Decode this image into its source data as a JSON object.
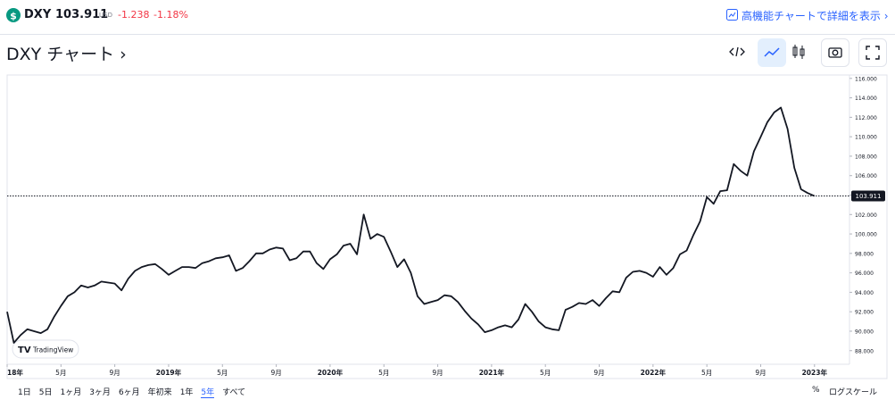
{
  "header": {
    "symbol": "DXY",
    "price": "103.911",
    "currency": "USD",
    "change": "-1.238",
    "change_pct": "-1.18%",
    "link": "高機能チャートで詳細を表示"
  },
  "title": "DXY チャート",
  "chart_data": {
    "type": "line",
    "series": [
      {
        "name": "DXY",
        "color": "#131722",
        "values": [
          92.0,
          88.8,
          89.6,
          90.2,
          90.0,
          89.8,
          90.2,
          91.5,
          92.6,
          93.6,
          94.0,
          94.7,
          94.5,
          94.7,
          95.1,
          95.0,
          94.9,
          94.2,
          95.4,
          96.2,
          96.6,
          96.8,
          96.9,
          96.4,
          95.8,
          96.2,
          96.6,
          96.6,
          96.5,
          97.0,
          97.2,
          97.5,
          97.6,
          97.8,
          96.2,
          96.5,
          97.2,
          98.0,
          98.0,
          98.4,
          98.6,
          98.5,
          97.3,
          97.5,
          98.2,
          98.2,
          97.0,
          96.4,
          97.4,
          97.9,
          98.8,
          99.0,
          97.9,
          102.0,
          99.5,
          100.0,
          99.7,
          98.2,
          96.6,
          97.4,
          96.0,
          93.6,
          92.8,
          93.0,
          93.2,
          93.7,
          93.6,
          93.0,
          92.1,
          91.3,
          90.7,
          89.9,
          90.1,
          90.4,
          90.6,
          90.4,
          91.2,
          92.8,
          92.0,
          91.0,
          90.4,
          90.2,
          90.1,
          92.2,
          92.5,
          92.9,
          92.8,
          93.2,
          92.6,
          93.4,
          94.1,
          94.0,
          95.5,
          96.1,
          96.2,
          96.0,
          95.6,
          96.6,
          95.8,
          96.5,
          97.9,
          98.3,
          99.9,
          101.3,
          103.8,
          103.1,
          104.4,
          104.5,
          107.2,
          106.5,
          106.0,
          108.5,
          110.0,
          111.5,
          112.5,
          113.0,
          110.8,
          106.8,
          104.6,
          104.2,
          103.9
        ]
      }
    ],
    "x": [
      0,
      0.5,
      1,
      1.5,
      2,
      2.5,
      3,
      3.5,
      4,
      4.5,
      5,
      5.5,
      6,
      6.5,
      7,
      7.5,
      8,
      8.5,
      9,
      9.5,
      10,
      10.5,
      11,
      11.5,
      12,
      12.5,
      13,
      13.5,
      14,
      14.5,
      15,
      15.5,
      16,
      16.5,
      17,
      17.5,
      18,
      18.5,
      19,
      19.5,
      20,
      20.5,
      21,
      21.5,
      22,
      22.5,
      23,
      23.5,
      24,
      24.5,
      25,
      25.5,
      26,
      26.5,
      27,
      27.5,
      28,
      28.5,
      29,
      29.5,
      30,
      30.5,
      31,
      31.5,
      32,
      32.5,
      33,
      33.5,
      34,
      34.5,
      35,
      35.5,
      36,
      36.5,
      37,
      37.5,
      38,
      38.5,
      39,
      39.5,
      40,
      40.5,
      41,
      41.5,
      42,
      42.5,
      43,
      43.5,
      44,
      44.5,
      45,
      45.5,
      46,
      46.5,
      47,
      47.5,
      48,
      48.5,
      49,
      49.5,
      50,
      50.5,
      51,
      51.5,
      52,
      52.5,
      53,
      53.5,
      54,
      54.5,
      55,
      55.5,
      56,
      56.5,
      57,
      57.5,
      58,
      58.5,
      59,
      59.5,
      60
    ],
    "xlim": [
      0,
      62.6
    ],
    "xticks": [
      {
        "value": 0,
        "label": "18年"
      },
      {
        "value": 4,
        "label": "5月"
      },
      {
        "value": 8,
        "label": "9月"
      },
      {
        "value": 12,
        "label": "2019年"
      },
      {
        "value": 16,
        "label": "5月"
      },
      {
        "value": 20,
        "label": "9月"
      },
      {
        "value": 24,
        "label": "2020年"
      },
      {
        "value": 28,
        "label": "5月"
      },
      {
        "value": 32,
        "label": "9月"
      },
      {
        "value": 36,
        "label": "2021年"
      },
      {
        "value": 40,
        "label": "5月"
      },
      {
        "value": 44,
        "label": "9月"
      },
      {
        "value": 48,
        "label": "2022年"
      },
      {
        "value": 52,
        "label": "5月"
      },
      {
        "value": 56,
        "label": "9月"
      },
      {
        "value": 60,
        "label": "2023年"
      }
    ],
    "ylim": [
      86.6,
      116.35
    ],
    "yticks": [
      {
        "value": 88,
        "label": "88.000"
      },
      {
        "value": 90,
        "label": "90.000"
      },
      {
        "value": 92,
        "label": "92.000"
      },
      {
        "value": 94,
        "label": "94.000"
      },
      {
        "value": 96,
        "label": "96.000"
      },
      {
        "value": 98,
        "label": "98.000"
      },
      {
        "value": 100,
        "label": "100.000"
      },
      {
        "value": 102,
        "label": "102.000"
      },
      {
        "value": 104,
        "label": "104.000"
      },
      {
        "value": 106,
        "label": "106.000"
      },
      {
        "value": 108,
        "label": "108.000"
      },
      {
        "value": 110,
        "label": "110.000"
      },
      {
        "value": 112,
        "label": "112.000"
      },
      {
        "value": 114,
        "label": "114.000"
      },
      {
        "value": 116,
        "label": "116.000"
      }
    ],
    "price_line": {
      "value": 103.911,
      "label": "103.911"
    },
    "watermark": "TradingView"
  },
  "ranges": [
    "1日",
    "5日",
    "1ヶ月",
    "3ヶ月",
    "6ヶ月",
    "年初来",
    "1年",
    "5年",
    "すべて"
  ],
  "active_range": 7,
  "options": [
    "%",
    "ログスケール"
  ]
}
